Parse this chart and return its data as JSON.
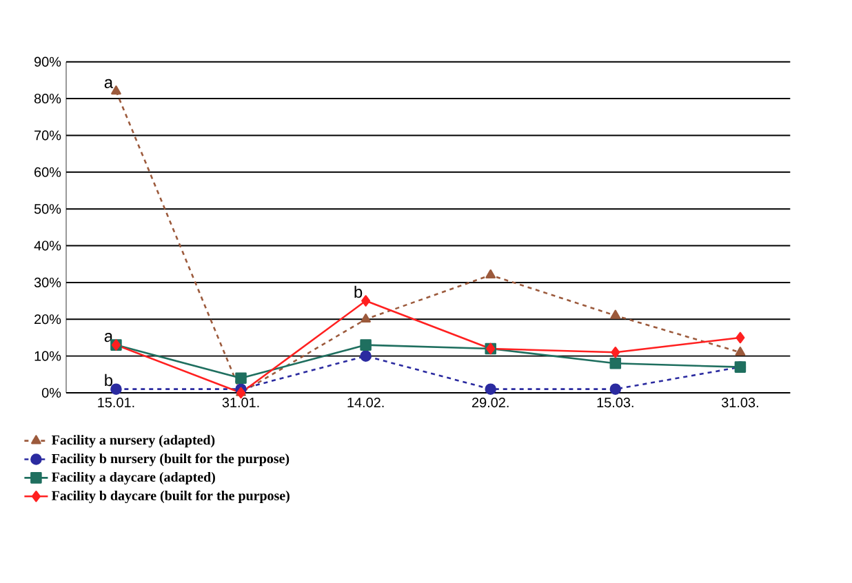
{
  "chart_data": {
    "type": "line",
    "categories": [
      "15.01.",
      "31.01.",
      "14.02.",
      "29.02.",
      "15.03.",
      "31.03."
    ],
    "series": [
      {
        "name": "Facility  a   nursery    (adapted)",
        "color": "#9c5a3c",
        "marker": "triangle",
        "line_style": "dashed",
        "values": [
          82,
          0,
          20,
          32,
          21,
          11
        ]
      },
      {
        "name": "Facility  b    nursery    (built  for the purpose)",
        "color": "#2b2ba0",
        "marker": "circle",
        "line_style": "dashed",
        "values": [
          1,
          1,
          10,
          1,
          1,
          7
        ]
      },
      {
        "name": "Facility  a   daycare    (adapted)",
        "color": "#1f6f5f",
        "marker": "square",
        "line_style": "solid",
        "values": [
          13,
          4,
          13,
          12,
          8,
          7
        ]
      },
      {
        "name": "Facility  b   daycare   (built  for the purpose)",
        "color": "#ff2020",
        "marker": "diamond",
        "line_style": "solid",
        "values": [
          13,
          0,
          25,
          12,
          11,
          15
        ]
      }
    ],
    "ylim": [
      0,
      90
    ],
    "yticks": [
      {
        "value": 0,
        "label": "0%"
      },
      {
        "value": 10,
        "label": "10%"
      },
      {
        "value": 20,
        "label": "20%"
      },
      {
        "value": 30,
        "label": "30%"
      },
      {
        "value": 40,
        "label": "40%"
      },
      {
        "value": 50,
        "label": "50%"
      },
      {
        "value": 60,
        "label": "60%"
      },
      {
        "value": 70,
        "label": "70%"
      },
      {
        "value": 80,
        "label": "80%"
      },
      {
        "value": 90,
        "label": "90%"
      }
    ],
    "grid": "y",
    "legend": "bottom",
    "annotations": [
      {
        "text": "a",
        "x": "15.01.",
        "y": 82
      },
      {
        "text": "a",
        "x": "15.01.",
        "y": 13
      },
      {
        "text": "b",
        "x": "15.01.",
        "y": 1
      },
      {
        "text": "b",
        "x": "14.02.",
        "y": 25
      }
    ]
  }
}
